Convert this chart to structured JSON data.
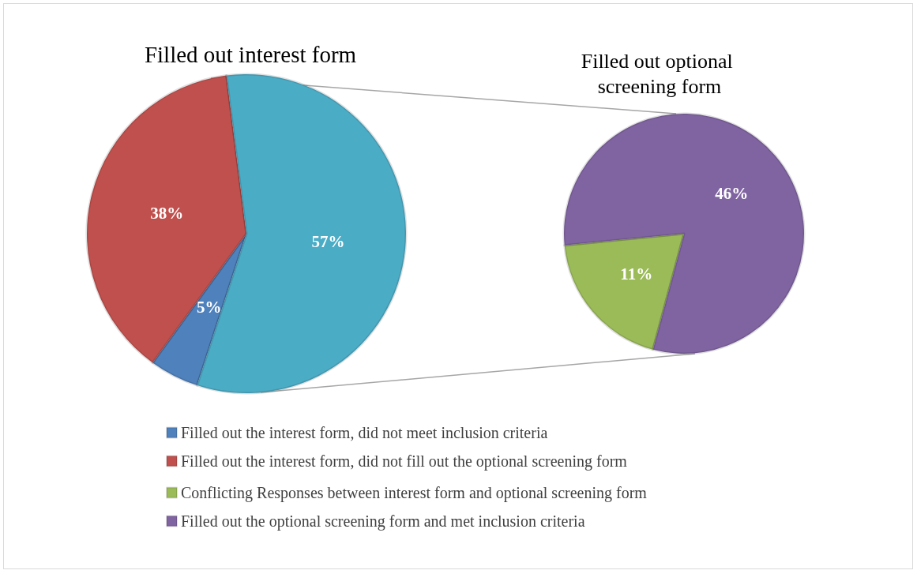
{
  "chart_data": [
    {
      "type": "pie",
      "title": "Filled out interest form",
      "categories": [
        "Filled out the interest form, did not meet inclusion criteria",
        "Filled out the interest form, did not fill out the optional screening form",
        null
      ],
      "values": [
        5,
        38,
        57
      ],
      "colors": [
        "#4f81bd",
        "#c0504d",
        "#4bacc6"
      ],
      "value_labels": [
        "5%",
        "38%",
        "57%"
      ],
      "legend": "bottom"
    },
    {
      "type": "pie",
      "title": "Filled out optional screening form",
      "categories": [
        "Conflicting Responses between interest form and optional screening form",
        "Filled out the optional screening form and met inclusion criteria"
      ],
      "values": [
        11,
        46
      ],
      "colors": [
        "#9bbb59",
        "#8064a2"
      ],
      "value_labels": [
        "11%",
        "46%"
      ],
      "legend": "bottom"
    }
  ]
}
